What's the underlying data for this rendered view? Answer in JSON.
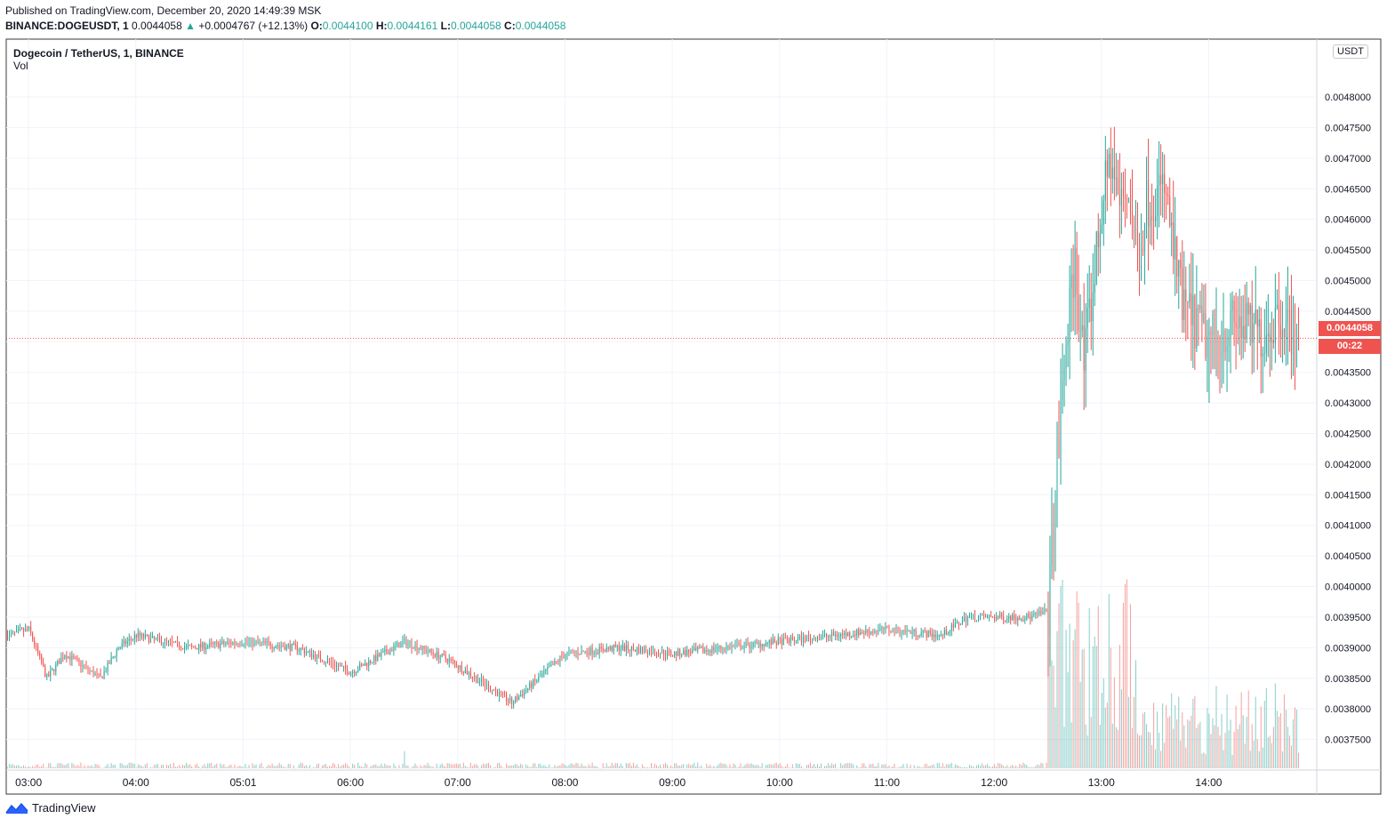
{
  "header": {
    "published": "Published on TradingView.com, December 20, 2020 14:49:39 MSK",
    "symbol": "BINANCE:DOGEUSDT, 1",
    "last": "0.0044058",
    "change": "+0.0004767 (+12.13%)",
    "o_label": "O:",
    "o": "0.0044100",
    "h_label": "H:",
    "h": "0.0044161",
    "l_label": "L:",
    "l": "0.0044058",
    "c_label": "C:",
    "c": "0.0044058"
  },
  "legend": {
    "title": "Dogecoin / TetherUS, 1, BINANCE",
    "indicator": "Vol"
  },
  "price_axis": {
    "currency": "USDT",
    "last_price": "0.0044058",
    "countdown": "00:22"
  },
  "footer": {
    "brand": "TradingView",
    "logo": "tradingview-logo-icon"
  },
  "colors": {
    "up": "#26a69a",
    "down": "#ef5350",
    "grid": "#f0f3fa",
    "text": "#131722"
  },
  "chart_data": {
    "type": "candlestick",
    "timeframe": "1 minute",
    "x_ticks": [
      "03:00",
      "04:00",
      "05:01",
      "06:00",
      "07:00",
      "08:00",
      "09:00",
      "10:00",
      "11:00",
      "12:00",
      "13:00",
      "14:00"
    ],
    "y_ticks": [
      "0.0037500",
      "0.0038000",
      "0.0038500",
      "0.0039000",
      "0.0039500",
      "0.0040000",
      "0.0040500",
      "0.0041000",
      "0.0041500",
      "0.0042000",
      "0.0042500",
      "0.0043000",
      "0.0043500",
      "0.0044000",
      "0.0044500",
      "0.0045000",
      "0.0045500",
      "0.0046000",
      "0.0046500",
      "0.0047000",
      "0.0047500",
      "0.0048000"
    ],
    "ylim": [
      0.0037,
      0.00488
    ],
    "grid": true,
    "last_price": 0.0044058,
    "price_path": [
      {
        "t": "02:48",
        "p": 0.00392
      },
      {
        "t": "03:00",
        "p": 0.00393
      },
      {
        "t": "03:10",
        "p": 0.00385
      },
      {
        "t": "03:20",
        "p": 0.00389
      },
      {
        "t": "03:40",
        "p": 0.00385
      },
      {
        "t": "03:50",
        "p": 0.0039
      },
      {
        "t": "04:00",
        "p": 0.00392
      },
      {
        "t": "04:30",
        "p": 0.0039
      },
      {
        "t": "05:00",
        "p": 0.00391
      },
      {
        "t": "05:30",
        "p": 0.0039
      },
      {
        "t": "06:00",
        "p": 0.00386
      },
      {
        "t": "06:30",
        "p": 0.00391
      },
      {
        "t": "06:55",
        "p": 0.00388
      },
      {
        "t": "07:30",
        "p": 0.00381
      },
      {
        "t": "08:00",
        "p": 0.00389
      },
      {
        "t": "08:30",
        "p": 0.0039
      },
      {
        "t": "09:00",
        "p": 0.00389
      },
      {
        "t": "09:30",
        "p": 0.0039
      },
      {
        "t": "10:00",
        "p": 0.00391
      },
      {
        "t": "10:30",
        "p": 0.00392
      },
      {
        "t": "11:00",
        "p": 0.00393
      },
      {
        "t": "11:30",
        "p": 0.00392
      },
      {
        "t": "11:45",
        "p": 0.00395
      },
      {
        "t": "12:20",
        "p": 0.00395
      },
      {
        "t": "12:30",
        "p": 0.00396
      },
      {
        "t": "12:35",
        "p": 0.0042
      },
      {
        "t": "12:40",
        "p": 0.0044
      },
      {
        "t": "12:45",
        "p": 0.00453
      },
      {
        "t": "12:50",
        "p": 0.00436
      },
      {
        "t": "13:00",
        "p": 0.00462
      },
      {
        "t": "13:05",
        "p": 0.0047
      },
      {
        "t": "13:10",
        "p": 0.00462
      },
      {
        "t": "13:15",
        "p": 0.00465
      },
      {
        "t": "13:20",
        "p": 0.00452
      },
      {
        "t": "13:25",
        "p": 0.00463
      },
      {
        "t": "13:35",
        "p": 0.00465
      },
      {
        "t": "13:40",
        "p": 0.00455
      },
      {
        "t": "13:45",
        "p": 0.00446
      },
      {
        "t": "14:00",
        "p": 0.0044
      },
      {
        "t": "14:15",
        "p": 0.00443
      },
      {
        "t": "14:30",
        "p": 0.00441
      },
      {
        "t": "14:40",
        "p": 0.00445
      },
      {
        "t": "14:49",
        "p": 0.0044058
      }
    ],
    "extremes": [
      {
        "t": "07:30",
        "low": 0.0038
      },
      {
        "t": "13:05",
        "high": 0.00475
      },
      {
        "t": "14:00",
        "low": 0.0043
      }
    ]
  }
}
